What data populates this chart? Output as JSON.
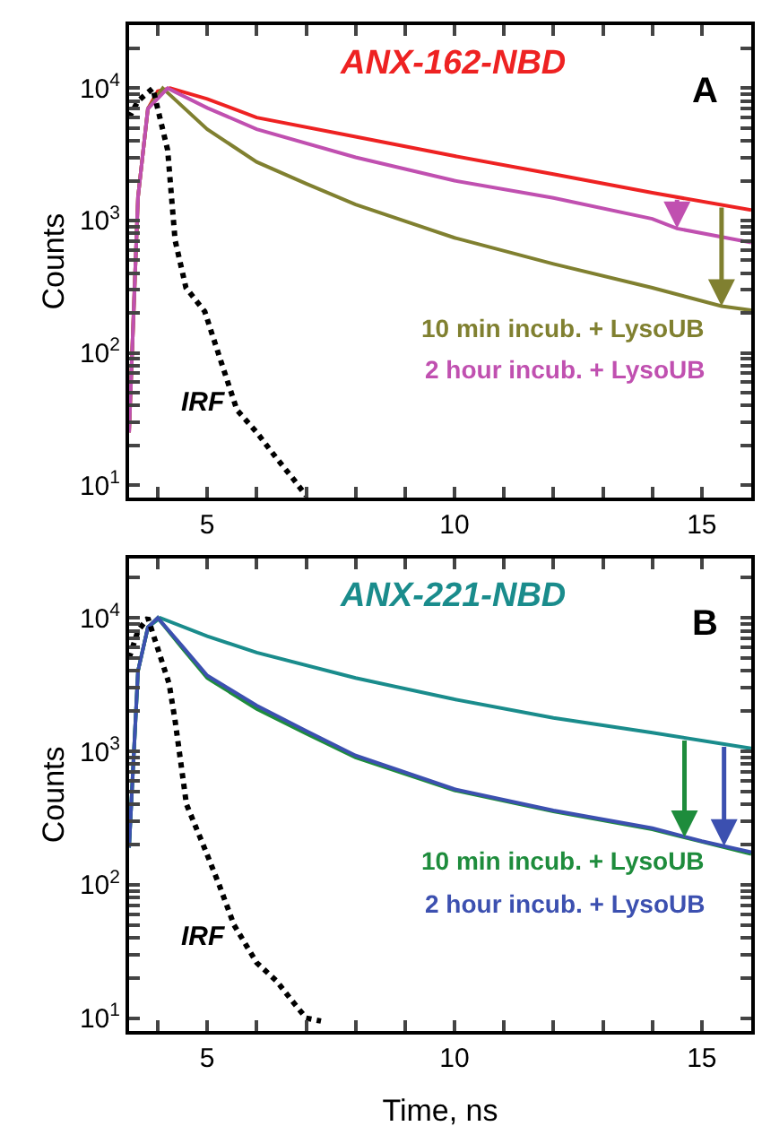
{
  "chart_data": [
    {
      "type": "line",
      "ylabel": "Counts",
      "log": true,
      "legend": "top right",
      "annotations": [
        "A"
      ],
      "xlim": [
        3.42,
        16
      ],
      "ylim": [
        8,
        30000
      ],
      "xticks": [
        {
          "value": 4,
          "label": null
        },
        5,
        {
          "value": 6,
          "label": null
        },
        {
          "value": 7,
          "label": null
        },
        {
          "value": 8,
          "label": null
        },
        {
          "value": 9,
          "label": null
        },
        10,
        {
          "value": 11,
          "label": null
        },
        {
          "value": 12,
          "label": null
        },
        {
          "value": 13,
          "label": null
        },
        {
          "value": 14,
          "label": null
        },
        15
      ],
      "yticks": [
        {
          "value": 10,
          "label": "10$^{1}$"
        },
        {
          "value": 100,
          "label": "10$^{2}$"
        },
        {
          "value": 1000,
          "label": "10$^{3}$"
        },
        {
          "value": 10000,
          "label": "10$^{4}$"
        },
        {
          "value": 20,
          "label": null
        },
        {
          "value": 30,
          "label": null
        },
        {
          "value": 40,
          "label": null
        },
        {
          "value": 50,
          "label": null
        },
        {
          "value": 60,
          "label": null
        },
        {
          "value": 70,
          "label": null
        },
        {
          "value": 80,
          "label": null
        },
        {
          "value": 90,
          "label": null
        },
        {
          "value": 200,
          "label": null
        },
        {
          "value": 300,
          "label": null
        },
        {
          "value": 400,
          "label": null
        },
        {
          "value": 500,
          "label": null
        },
        {
          "value": 600,
          "label": null
        },
        {
          "value": 700,
          "label": null
        },
        {
          "value": 800,
          "label": null
        },
        {
          "value": 900,
          "label": null
        },
        {
          "value": 2000,
          "label": null
        },
        {
          "value": 3000,
          "label": null
        },
        {
          "value": 4000,
          "label": null
        },
        {
          "value": 5000,
          "label": null
        },
        {
          "value": 6000,
          "label": null
        },
        {
          "value": 7000,
          "label": null
        },
        {
          "value": 8000,
          "label": null
        },
        {
          "value": 9000,
          "label": null
        },
        {
          "value": 20000,
          "label": null
        }
      ],
      "series": [
        {
          "name": "ANX-162-NBD",
          "color": "#ee2222",
          "line_style": "solid",
          "x": [
            3.42,
            3.6,
            3.8,
            4.0,
            4.25,
            5,
            6,
            8,
            10,
            12,
            14,
            16
          ],
          "values": [
            25,
            1500,
            7000,
            9500,
            10000,
            8300,
            6000,
            4300,
            3070,
            2240,
            1620,
            1200
          ]
        },
        {
          "name": "10 min incub. + LysoUB",
          "color": "#808030",
          "line_style": "solid",
          "x": [
            3.42,
            3.6,
            3.8,
            4.1,
            5,
            6,
            7,
            8,
            10,
            12,
            14,
            15.4,
            16
          ],
          "values": [
            25,
            1500,
            7000,
            10000,
            4900,
            2770,
            1900,
            1320,
            740,
            470,
            310,
            225,
            210
          ]
        },
        {
          "name": "2 hour incub. + LysoUB",
          "color": "#c050b0",
          "line_style": "solid",
          "x": [
            3.42,
            3.6,
            3.8,
            4.2,
            5,
            6,
            8,
            10,
            12,
            14,
            14.5,
            16
          ],
          "values": [
            25,
            1500,
            7000,
            10000,
            7100,
            4900,
            3000,
            2000,
            1480,
            1030,
            870,
            680
          ]
        },
        {
          "name": "IRF",
          "color": "#000000",
          "line_style": "dotted",
          "x": [
            3.42,
            3.6,
            3.9,
            4.2,
            4.35,
            4.57,
            4.95,
            5.24,
            5.6,
            6.0,
            6.4,
            6.75,
            7.0
          ],
          "values": [
            6000,
            8000,
            10000,
            3400,
            710,
            310,
            205,
            95,
            37,
            25,
            16,
            11,
            8.3
          ]
        }
      ]
    },
    {
      "type": "line",
      "ylabel": "Counts",
      "xlabel": "Time, ns",
      "log": true,
      "legend": "top right",
      "annotations": [
        "B"
      ],
      "xlim": [
        3.42,
        16
      ],
      "ylim": [
        8,
        28000
      ],
      "xticks": [
        {
          "value": 4,
          "label": null
        },
        5,
        {
          "value": 6,
          "label": null
        },
        {
          "value": 7,
          "label": null
        },
        {
          "value": 8,
          "label": null
        },
        {
          "value": 9,
          "label": null
        },
        10,
        {
          "value": 11,
          "label": null
        },
        {
          "value": 12,
          "label": null
        },
        {
          "value": 13,
          "label": null
        },
        {
          "value": 14,
          "label": null
        },
        15
      ],
      "yticks": [
        {
          "value": 10,
          "label": "10$^{1}$"
        },
        {
          "value": 100,
          "label": "10$^{2}$"
        },
        {
          "value": 1000,
          "label": "10$^{3}$"
        },
        {
          "value": 10000,
          "label": "10$^{4}$"
        },
        {
          "value": 20,
          "label": null
        },
        {
          "value": 30,
          "label": null
        },
        {
          "value": 40,
          "label": null
        },
        {
          "value": 50,
          "label": null
        },
        {
          "value": 60,
          "label": null
        },
        {
          "value": 70,
          "label": null
        },
        {
          "value": 80,
          "label": null
        },
        {
          "value": 90,
          "label": null
        },
        {
          "value": 200,
          "label": null
        },
        {
          "value": 300,
          "label": null
        },
        {
          "value": 400,
          "label": null
        },
        {
          "value": 500,
          "label": null
        },
        {
          "value": 600,
          "label": null
        },
        {
          "value": 700,
          "label": null
        },
        {
          "value": 800,
          "label": null
        },
        {
          "value": 900,
          "label": null
        },
        {
          "value": 2000,
          "label": null
        },
        {
          "value": 3000,
          "label": null
        },
        {
          "value": 4000,
          "label": null
        },
        {
          "value": 5000,
          "label": null
        },
        {
          "value": 6000,
          "label": null
        },
        {
          "value": 7000,
          "label": null
        },
        {
          "value": 8000,
          "label": null
        },
        {
          "value": 9000,
          "label": null
        },
        {
          "value": 20000,
          "label": null
        }
      ],
      "series": [
        {
          "name": "ANX-221-NBD",
          "color": "#1a8c8c",
          "line_style": "solid",
          "x": [
            3.42,
            3.6,
            3.8,
            4.05,
            5,
            6,
            8,
            10,
            12,
            14,
            16
          ],
          "values": [
            190,
            4000,
            8500,
            10000,
            7300,
            5500,
            3540,
            2450,
            1780,
            1380,
            1050
          ]
        },
        {
          "name": "10 min incub. + LysoUB",
          "color": "#1e8c3c",
          "line_style": "solid",
          "x": [
            3.42,
            3.6,
            3.8,
            4.0,
            4.5,
            5,
            6,
            7,
            8,
            10,
            12,
            14,
            15,
            16
          ],
          "values": [
            190,
            4000,
            8500,
            10000,
            5900,
            3540,
            2080,
            1360,
            900,
            510,
            355,
            260,
            210,
            170
          ]
        },
        {
          "name": "2 hour incub. + LysoUB",
          "color": "#3c50b0",
          "line_style": "solid",
          "x": [
            3.42,
            3.6,
            3.8,
            4.0,
            4.5,
            5,
            6,
            7,
            8,
            10,
            12,
            14,
            15,
            16
          ],
          "values": [
            190,
            4000,
            8500,
            10000,
            6100,
            3700,
            2200,
            1420,
            930,
            520,
            360,
            265,
            212,
            175
          ]
        },
        {
          "name": "IRF",
          "color": "#000000",
          "line_style": "dotted",
          "x": [
            3.42,
            3.6,
            3.8,
            4.23,
            4.35,
            4.58,
            4.94,
            5.24,
            5.54,
            6.0,
            6.4,
            6.75,
            7.0,
            7.3
          ],
          "values": [
            5000,
            8000,
            10000,
            3200,
            1700,
            400,
            190,
            100,
            50,
            26,
            19,
            13,
            10,
            9.5
          ]
        }
      ]
    }
  ]
}
